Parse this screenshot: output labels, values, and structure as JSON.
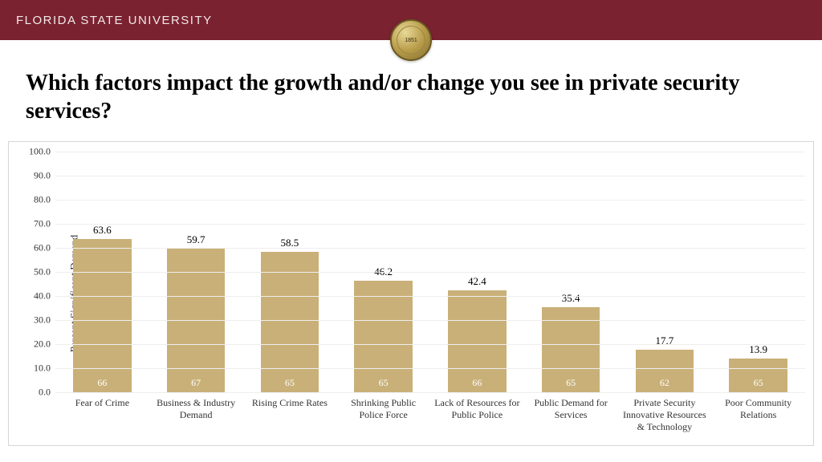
{
  "header": {
    "org_name": "FLORIDA STATE UNIVERSITY",
    "bg_color": "#7a2230",
    "seal_text": "1851"
  },
  "slide": {
    "title": "Which factors impact the growth and/or change you see in private security services?"
  },
  "chart": {
    "type": "bar",
    "ylabel": "Percent Significant Demand",
    "ylim_max": 100,
    "ytick_step": 10,
    "bar_color": "#c9b078",
    "grid_color": "#eeeeee",
    "border_color": "#d6d6d6",
    "background_color": "#ffffff",
    "value_label_color": "#000000",
    "n_label_color": "#ffffff",
    "axis_fontsize": 12,
    "ylabel_fontsize": 13,
    "value_fontsize": 13,
    "bars": [
      {
        "category": "Fear of Crime",
        "value": 63.6,
        "n": 66
      },
      {
        "category": "Business & Industry Demand",
        "value": 59.7,
        "n": 67
      },
      {
        "category": "Rising Crime Rates",
        "value": 58.5,
        "n": 65
      },
      {
        "category": "Shrinking Public Police Force",
        "value": 46.2,
        "n": 65
      },
      {
        "category": "Lack of Resources for Public Police",
        "value": 42.4,
        "n": 66
      },
      {
        "category": "Public Demand for Services",
        "value": 35.4,
        "n": 65
      },
      {
        "category": "Private Security Innovative Resources & Technology",
        "value": 17.7,
        "n": 62
      },
      {
        "category": "Poor Community Relations",
        "value": 13.9,
        "n": 65
      }
    ]
  }
}
